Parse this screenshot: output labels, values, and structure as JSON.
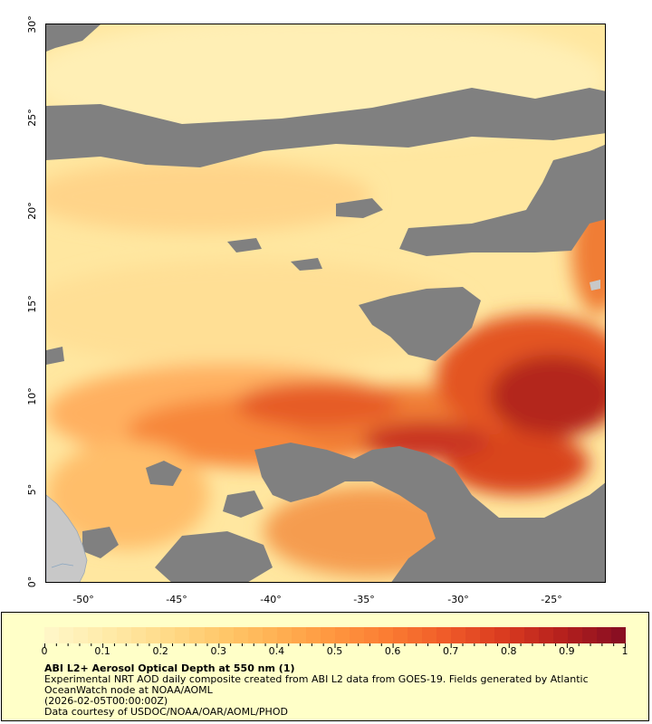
{
  "map": {
    "lat_labels": [
      "30°",
      "25°",
      "20°",
      "15°",
      "10°",
      "5°",
      "0°"
    ],
    "lon_labels": [
      "-50°",
      "-45°",
      "-40°",
      "-35°",
      "-30°",
      "-25°"
    ],
    "colors": {
      "no_data": "#808080",
      "land": "#c8c8c8",
      "frame": "#000000"
    }
  },
  "legend": {
    "title": "ABI L2+ Aerosol Optical Depth at 550 nm (1)",
    "line1": "Experimental NRT AOD daily composite created from ABI L2 data from GOES-19. Fields generated by Atlantic OceanWatch node at NOAA/AOML",
    "line2": "(2026-02-05T00:00:00Z)",
    "line3": "Data courtesy of USDOC/NOAA/OAR/AOML/PHOD",
    "tick_labels": [
      "0",
      "0.1",
      "0.2",
      "0.3",
      "0.4",
      "0.5",
      "0.6",
      "0.7",
      "0.8",
      "0.9",
      "1"
    ],
    "colormap": [
      "#fff6c6",
      "#ffeaa8",
      "#ffdb8a",
      "#ffc86a",
      "#ffb052",
      "#ff963f",
      "#fa7a32",
      "#ef5a28",
      "#d93a20",
      "#b5201d",
      "#8a0f22"
    ]
  }
}
